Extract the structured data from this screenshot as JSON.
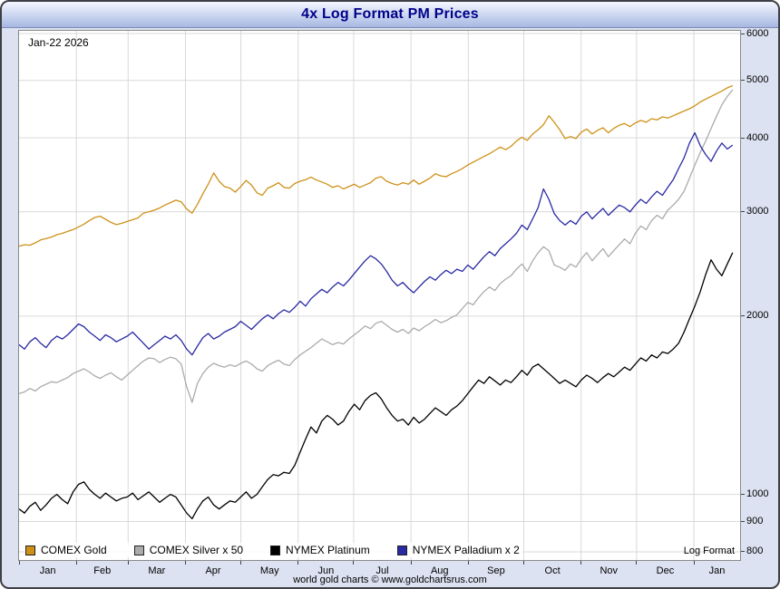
{
  "window": {
    "title": "4x Log Format PM Prices"
  },
  "annotations": {
    "date_label": "Jan-22 2026",
    "log_format_label": "Log Format",
    "footer": "world gold charts © www.goldchartsrus.com"
  },
  "colors": {
    "title_text": "#00008B",
    "frame_bg": "#DCE2F1",
    "grid": "#D9D9D9",
    "gold": "#CE9118",
    "silver": "#ABABAB",
    "platinum": "#000000",
    "palladium": "#2929A3"
  },
  "chart_data": {
    "type": "line",
    "title": "4x Log Format PM Prices",
    "log_scale": true,
    "ylim": [
      775,
      6065
    ],
    "y_ticks": [
      800,
      900,
      1000,
      2000,
      3000,
      4000,
      5000,
      6000
    ],
    "x_months": [
      "Jan",
      "Feb",
      "Mar",
      "Apr",
      "May",
      "Jun",
      "Jul",
      "Aug",
      "Sep",
      "Oct",
      "Nov",
      "Dec",
      "Jan"
    ],
    "month_start_days": [
      0,
      31,
      59,
      90,
      120,
      151,
      181,
      212,
      243,
      273,
      304,
      334,
      365
    ],
    "total_days": 390,
    "data_end_day": 386,
    "legend_position": "bottom-left",
    "grid": true,
    "series": [
      {
        "name": "COMEX Gold",
        "color": "#CE9118",
        "values": [
          2625,
          2640,
          2635,
          2660,
          2690,
          2705,
          2720,
          2745,
          2760,
          2780,
          2800,
          2830,
          2860,
          2900,
          2935,
          2950,
          2915,
          2880,
          2855,
          2870,
          2890,
          2910,
          2930,
          2985,
          3000,
          3020,
          3045,
          3080,
          3110,
          3140,
          3120,
          3035,
          2985,
          3090,
          3220,
          3340,
          3490,
          3380,
          3310,
          3290,
          3240,
          3310,
          3390,
          3330,
          3230,
          3200,
          3290,
          3320,
          3360,
          3300,
          3290,
          3350,
          3380,
          3400,
          3435,
          3395,
          3370,
          3340,
          3300,
          3320,
          3280,
          3310,
          3340,
          3300,
          3330,
          3360,
          3420,
          3440,
          3380,
          3350,
          3330,
          3360,
          3340,
          3395,
          3340,
          3380,
          3420,
          3480,
          3450,
          3440,
          3480,
          3510,
          3550,
          3600,
          3640,
          3680,
          3720,
          3760,
          3810,
          3860,
          3820,
          3870,
          3950,
          4010,
          3960,
          4060,
          4130,
          4210,
          4360,
          4250,
          4130,
          3990,
          4020,
          3990,
          4090,
          4140,
          4060,
          4120,
          4160,
          4080,
          4150,
          4200,
          4230,
          4180,
          4240,
          4280,
          4250,
          4310,
          4290,
          4340,
          4320,
          4360,
          4400,
          4440,
          4480,
          4530,
          4600,
          4650,
          4700,
          4750,
          4800,
          4860,
          4900
        ]
      },
      {
        "name": "COMEX Silver x 50",
        "color": "#ABABAB",
        "values": [
          1480,
          1490,
          1510,
          1495,
          1520,
          1535,
          1550,
          1545,
          1560,
          1575,
          1600,
          1615,
          1630,
          1610,
          1585,
          1570,
          1590,
          1605,
          1580,
          1560,
          1590,
          1620,
          1650,
          1680,
          1700,
          1695,
          1670,
          1690,
          1705,
          1695,
          1660,
          1520,
          1430,
          1540,
          1600,
          1640,
          1665,
          1650,
          1640,
          1655,
          1645,
          1665,
          1680,
          1660,
          1630,
          1615,
          1650,
          1670,
          1685,
          1660,
          1650,
          1690,
          1720,
          1745,
          1770,
          1800,
          1830,
          1810,
          1790,
          1805,
          1795,
          1830,
          1860,
          1890,
          1925,
          1905,
          1945,
          1960,
          1930,
          1900,
          1880,
          1900,
          1870,
          1910,
          1890,
          1920,
          1945,
          1975,
          1950,
          1965,
          1990,
          2010,
          2060,
          2110,
          2090,
          2150,
          2200,
          2240,
          2210,
          2270,
          2310,
          2340,
          2400,
          2450,
          2380,
          2480,
          2560,
          2620,
          2580,
          2440,
          2420,
          2390,
          2450,
          2420,
          2500,
          2560,
          2480,
          2540,
          2600,
          2520,
          2580,
          2640,
          2700,
          2650,
          2760,
          2840,
          2800,
          2900,
          2960,
          2920,
          3020,
          3080,
          3150,
          3250,
          3420,
          3600,
          3780,
          3950,
          4150,
          4350,
          4550,
          4700,
          4820
        ]
      },
      {
        "name": "NYMEX Platinum",
        "color": "#000000",
        "values": [
          945,
          930,
          955,
          970,
          940,
          960,
          985,
          1000,
          980,
          965,
          1010,
          1040,
          1050,
          1020,
          1000,
          985,
          1005,
          990,
          975,
          985,
          990,
          1005,
          980,
          995,
          1010,
          990,
          970,
          985,
          1000,
          990,
          960,
          930,
          910,
          945,
          975,
          990,
          960,
          945,
          960,
          975,
          970,
          990,
          1010,
          985,
          1000,
          1030,
          1060,
          1080,
          1075,
          1090,
          1085,
          1120,
          1180,
          1240,
          1300,
          1270,
          1330,
          1360,
          1340,
          1310,
          1330,
          1380,
          1420,
          1390,
          1440,
          1470,
          1485,
          1450,
          1400,
          1360,
          1330,
          1340,
          1310,
          1350,
          1320,
          1340,
          1370,
          1400,
          1380,
          1360,
          1390,
          1410,
          1440,
          1480,
          1520,
          1560,
          1540,
          1580,
          1555,
          1530,
          1560,
          1545,
          1580,
          1620,
          1590,
          1640,
          1660,
          1630,
          1600,
          1570,
          1540,
          1560,
          1540,
          1520,
          1560,
          1590,
          1570,
          1545,
          1575,
          1600,
          1580,
          1610,
          1640,
          1620,
          1660,
          1700,
          1680,
          1720,
          1700,
          1740,
          1730,
          1760,
          1800,
          1880,
          1980,
          2080,
          2200,
          2350,
          2490,
          2400,
          2340,
          2450,
          2560
        ]
      },
      {
        "name": "NYMEX Palladium x 2",
        "color": "#2929A3",
        "values": [
          1790,
          1760,
          1810,
          1840,
          1800,
          1770,
          1820,
          1850,
          1830,
          1860,
          1900,
          1940,
          1920,
          1880,
          1850,
          1820,
          1860,
          1840,
          1810,
          1830,
          1850,
          1880,
          1840,
          1800,
          1760,
          1790,
          1820,
          1850,
          1830,
          1860,
          1820,
          1760,
          1720,
          1780,
          1840,
          1870,
          1830,
          1850,
          1880,
          1900,
          1920,
          1960,
          1930,
          1900,
          1940,
          1980,
          2010,
          1980,
          2020,
          2050,
          2030,
          2070,
          2120,
          2080,
          2140,
          2180,
          2220,
          2190,
          2240,
          2280,
          2250,
          2300,
          2360,
          2420,
          2480,
          2530,
          2500,
          2450,
          2380,
          2300,
          2250,
          2280,
          2230,
          2190,
          2240,
          2290,
          2330,
          2300,
          2350,
          2390,
          2360,
          2400,
          2380,
          2440,
          2400,
          2460,
          2520,
          2570,
          2530,
          2600,
          2650,
          2700,
          2760,
          2850,
          2800,
          2920,
          3050,
          3280,
          3150,
          2980,
          2900,
          2850,
          2900,
          2860,
          2950,
          3000,
          2920,
          2980,
          3040,
          2960,
          3020,
          3080,
          3050,
          3000,
          3080,
          3150,
          3100,
          3180,
          3250,
          3200,
          3300,
          3400,
          3550,
          3700,
          3920,
          4080,
          3880,
          3750,
          3650,
          3800,
          3920,
          3830,
          3890
        ]
      }
    ]
  }
}
